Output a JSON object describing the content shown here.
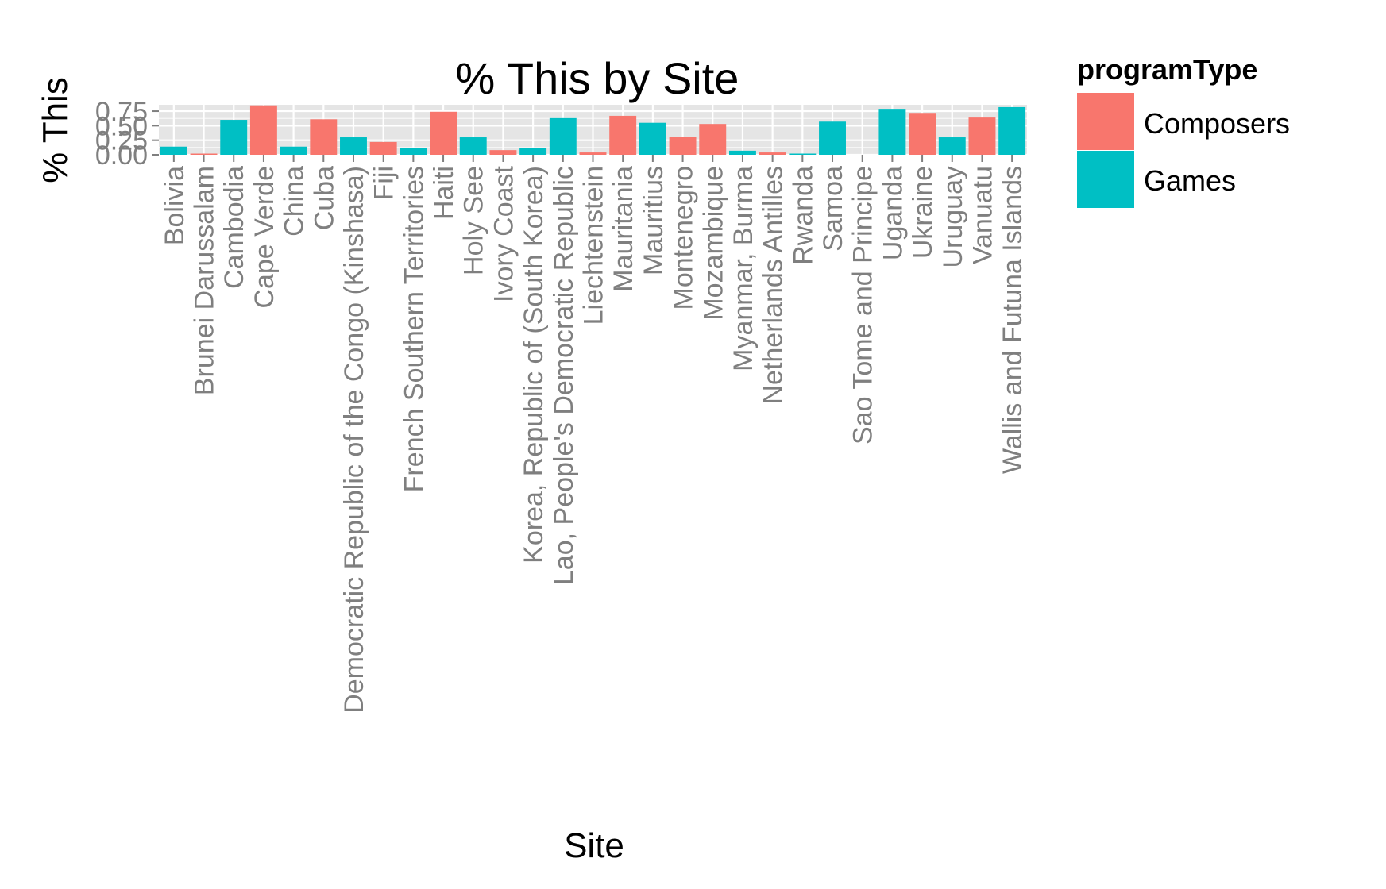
{
  "chart_data": {
    "type": "bar",
    "title": "% This by Site",
    "xlabel": "Site",
    "ylabel": "% This",
    "yticks": [
      "0.00",
      "0.25",
      "0.50",
      "0.75"
    ],
    "ylim": [
      0,
      0.86
    ],
    "grid": true,
    "legend": {
      "title": "programType",
      "placement": "right",
      "entries": [
        {
          "name": "Composers",
          "color": "#F8766D"
        },
        {
          "name": "Games",
          "color": "#00BFC4"
        }
      ]
    },
    "categories": [
      "Bolivia",
      "Brunei Darussalam",
      "Cambodia",
      "Cape Verde",
      "China",
      "Cuba",
      "Democratic Republic of the Congo (Kinshasa)",
      "Fiji",
      "French Southern Territories",
      "Haiti",
      "Holy See",
      "Ivory Coast",
      "Korea, Republic of (South Korea)",
      "Lao, People's Democratic Republic",
      "Liechtenstein",
      "Mauritania",
      "Mauritius",
      "Montenegro",
      "Mozambique",
      "Myanmar, Burma",
      "Netherlands Antilles",
      "Rwanda",
      "Samoa",
      "Sao Tome and Principe",
      "Uganda",
      "Ukraine",
      "Uruguay",
      "Vanuatu",
      "Wallis and Futuna Islands"
    ],
    "bars": [
      {
        "category": "Bolivia",
        "series": "Games",
        "value": 0.14
      },
      {
        "category": "Brunei Darussalam",
        "series": "Composers",
        "value": 0.02
      },
      {
        "category": "Cambodia",
        "series": "Games",
        "value": 0.6
      },
      {
        "category": "Cape Verde",
        "series": "Composers",
        "value": 0.85
      },
      {
        "category": "China",
        "series": "Games",
        "value": 0.14
      },
      {
        "category": "Cuba",
        "series": "Composers",
        "value": 0.61
      },
      {
        "category": "Democratic Republic of the Congo (Kinshasa)",
        "series": "Games",
        "value": 0.3
      },
      {
        "category": "Fiji",
        "series": "Composers",
        "value": 0.22
      },
      {
        "category": "French Southern Territories",
        "series": "Games",
        "value": 0.12
      },
      {
        "category": "Haiti",
        "series": "Composers",
        "value": 0.74
      },
      {
        "category": "Holy See",
        "series": "Games",
        "value": 0.3
      },
      {
        "category": "Ivory Coast",
        "series": "Composers",
        "value": 0.08
      },
      {
        "category": "Korea, Republic of (South Korea)",
        "series": "Games",
        "value": 0.11
      },
      {
        "category": "Lao, People's Democratic Republic",
        "series": "Games",
        "value": 0.63
      },
      {
        "category": "Liechtenstein",
        "series": "Composers",
        "value": 0.04
      },
      {
        "category": "Mauritania",
        "series": "Composers",
        "value": 0.67
      },
      {
        "category": "Mauritius",
        "series": "Games",
        "value": 0.55
      },
      {
        "category": "Montenegro",
        "series": "Composers",
        "value": 0.31
      },
      {
        "category": "Mozambique",
        "series": "Composers",
        "value": 0.53
      },
      {
        "category": "Myanmar, Burma",
        "series": "Games",
        "value": 0.07
      },
      {
        "category": "Netherlands Antilles",
        "series": "Composers",
        "value": 0.04
      },
      {
        "category": "Rwanda",
        "series": "Games",
        "value": 0.02
      },
      {
        "category": "Samoa",
        "series": "Games",
        "value": 0.57
      },
      {
        "category": "Sao Tome and Principe",
        "series": "Games",
        "value": 0.0
      },
      {
        "category": "Uganda",
        "series": "Games",
        "value": 0.79
      },
      {
        "category": "Ukraine",
        "series": "Composers",
        "value": 0.72
      },
      {
        "category": "Uruguay",
        "series": "Games",
        "value": 0.3
      },
      {
        "category": "Vanuatu",
        "series": "Composers",
        "value": 0.64
      },
      {
        "category": "Wallis and Futuna Islands",
        "series": "Games",
        "value": 0.82
      }
    ]
  }
}
